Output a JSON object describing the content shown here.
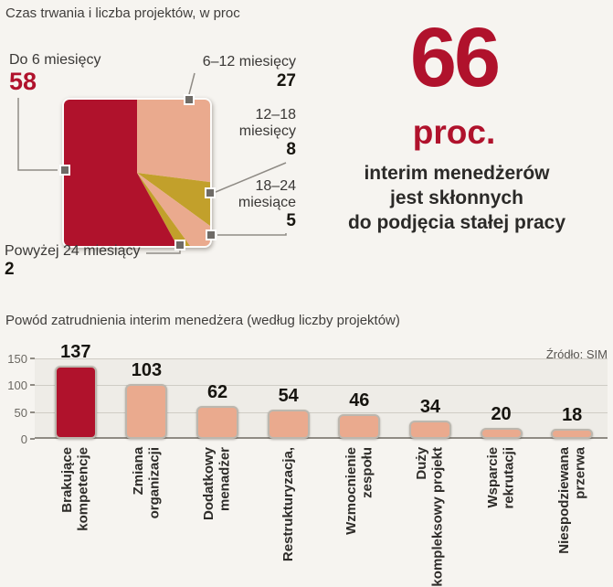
{
  "chart_data": [
    {
      "type": "pie",
      "variant": "square",
      "title": "Czas trwania i liczba projektów, w proc",
      "categories": [
        "Do 6 miesięcy",
        "6–12 miesięcy",
        "12–18 miesięcy",
        "18–24 miesiące",
        "Powyżej 24 miesiący"
      ],
      "values": [
        58,
        27,
        8,
        5,
        2
      ],
      "colors": [
        "#b0122c",
        "#eaaa8e",
        "#c2a02b",
        "#eaaa8e",
        "#c2a02b"
      ],
      "draw_order_clockwise_from_top": [
        1,
        2,
        3,
        4,
        0
      ],
      "legend": false
    },
    {
      "type": "bar",
      "title": "Powód zatrudnienia interim menedżera (według liczby projektów)",
      "source": "Źródło: SIM",
      "categories": [
        [
          "Brakujące",
          "kompetencje"
        ],
        [
          "Zmiana",
          "organizacji"
        ],
        [
          "Dodatkowy",
          "menadżer"
        ],
        [
          "Restrukturyzacja,"
        ],
        [
          "Wzmocnienie",
          "zespołu"
        ],
        [
          "Duży",
          "kompleksowy projekt"
        ],
        [
          "Wsparcie",
          "rekrutacji"
        ],
        [
          "Niespodziewana",
          "przerwa"
        ]
      ],
      "values": [
        137,
        103,
        62,
        54,
        46,
        34,
        20,
        18
      ],
      "bar_colors": [
        "#b0122c",
        "#eaaa8e",
        "#eaaa8e",
        "#eaaa8e",
        "#eaaa8e",
        "#eaaa8e",
        "#eaaa8e",
        "#eaaa8e"
      ],
      "ylim": [
        0,
        150
      ],
      "yticks": [
        150,
        100,
        50,
        0
      ],
      "grid": true,
      "legend": false
    }
  ],
  "callout": {
    "number": "66",
    "unit": "proc.",
    "lines": [
      "interim menedżerów",
      "jest skłonnych",
      "do podjęcia stałej pracy"
    ]
  },
  "colors": {
    "crimson": "#b0122c",
    "salmon": "#eaaa8e",
    "gold": "#c2a02b"
  }
}
